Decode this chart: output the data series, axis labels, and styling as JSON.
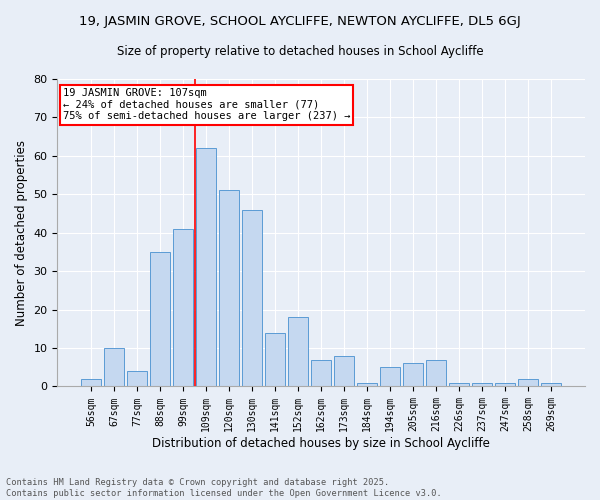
{
  "title1": "19, JASMIN GROVE, SCHOOL AYCLIFFE, NEWTON AYCLIFFE, DL5 6GJ",
  "title2": "Size of property relative to detached houses in School Aycliffe",
  "xlabel": "Distribution of detached houses by size in School Aycliffe",
  "ylabel": "Number of detached properties",
  "categories": [
    "56sqm",
    "67sqm",
    "77sqm",
    "88sqm",
    "99sqm",
    "109sqm",
    "120sqm",
    "130sqm",
    "141sqm",
    "152sqm",
    "162sqm",
    "173sqm",
    "184sqm",
    "194sqm",
    "205sqm",
    "216sqm",
    "226sqm",
    "237sqm",
    "247sqm",
    "258sqm",
    "269sqm"
  ],
  "values": [
    2,
    10,
    4,
    35,
    41,
    62,
    51,
    46,
    14,
    18,
    7,
    8,
    1,
    5,
    6,
    7,
    1,
    1,
    1,
    2,
    1
  ],
  "bar_color": "#c5d8f0",
  "bar_edge_color": "#5b9bd5",
  "vline_color": "red",
  "vline_x_index": 5,
  "annotation_line1": "19 JASMIN GROVE: 107sqm",
  "annotation_line2": "← 24% of detached houses are smaller (77)",
  "annotation_line3": "75% of semi-detached houses are larger (237) →",
  "annotation_box_color": "white",
  "annotation_box_edge_color": "red",
  "ylim": [
    0,
    80
  ],
  "yticks": [
    0,
    10,
    20,
    30,
    40,
    50,
    60,
    70,
    80
  ],
  "bg_color": "#e8eef7",
  "footer1": "Contains HM Land Registry data © Crown copyright and database right 2025.",
  "footer2": "Contains public sector information licensed under the Open Government Licence v3.0."
}
